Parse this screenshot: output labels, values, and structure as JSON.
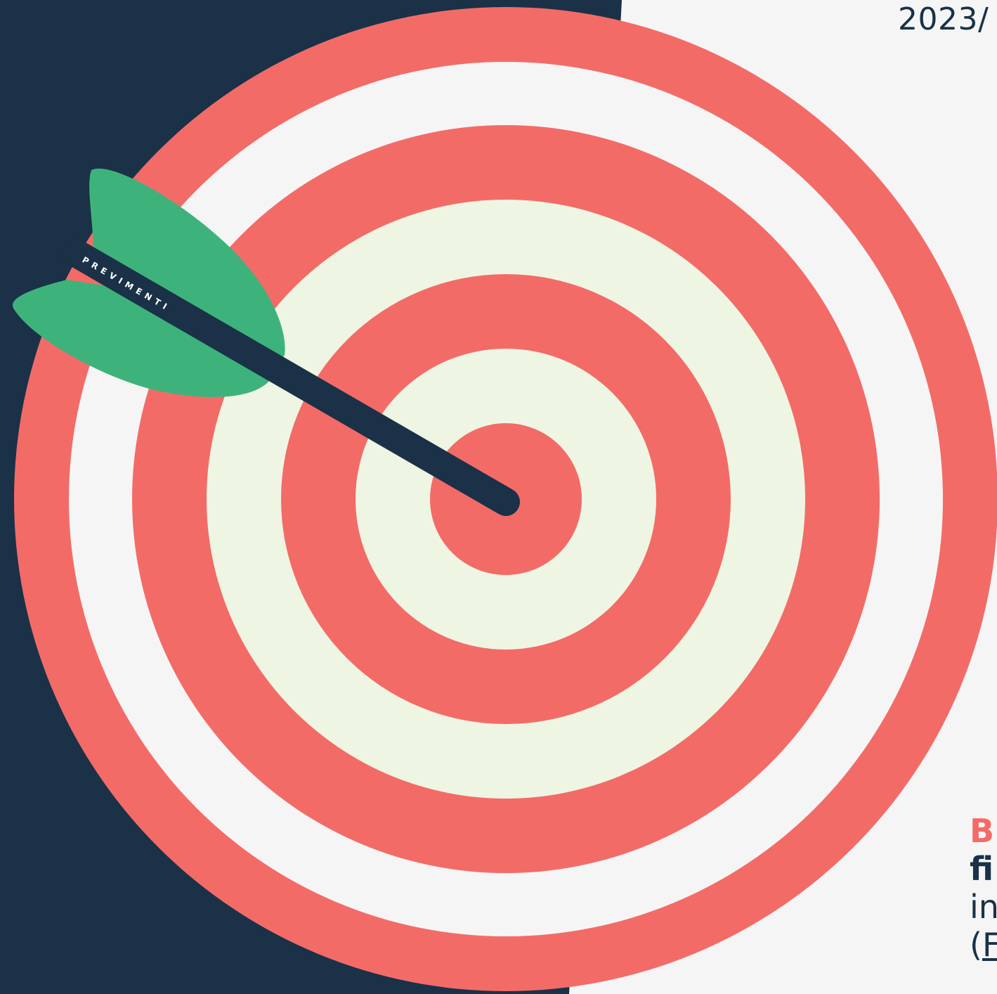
{
  "header": {
    "year_text": "2023/"
  },
  "arrow": {
    "brand_text": "PREVIMENTI"
  },
  "side_text": {
    "line1": "B",
    "line2": "fi",
    "line3": "in",
    "line4_paren": "(",
    "line4_link": "F"
  },
  "colors": {
    "navy": "#1a3148",
    "coral": "#f36b67",
    "offwhite": "#f5f5f5",
    "pale_green": "#eef5e2",
    "fletch_green": "#3db37b"
  }
}
